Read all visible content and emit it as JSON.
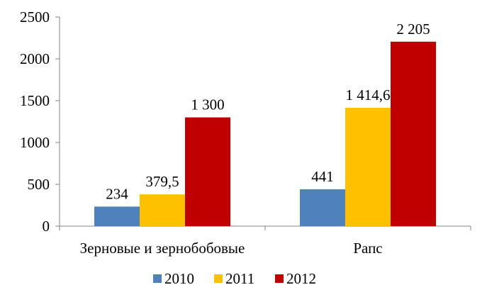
{
  "chart_data": {
    "type": "bar",
    "categories": [
      "Зерновые и зернобобовые",
      "Рапс"
    ],
    "series": [
      {
        "name": "2010",
        "color": "#4F81BD",
        "values": [
          234,
          441
        ],
        "labels": [
          "234",
          "441"
        ]
      },
      {
        "name": "2011",
        "color": "#FFC000",
        "values": [
          379.5,
          1414.6
        ],
        "labels": [
          "379,5",
          "1 414,6"
        ]
      },
      {
        "name": "2012",
        "color": "#C00000",
        "values": [
          1300,
          2205
        ],
        "labels": [
          "1 300",
          "2 205"
        ]
      }
    ],
    "ylim": [
      0,
      2500
    ],
    "yticks": [
      0,
      500,
      1000,
      1500,
      2000,
      2500
    ],
    "ytick_labels": [
      "0",
      "500",
      "1000",
      "1500",
      "2000",
      "2500"
    ],
    "grid": false,
    "legend_position": "bottom"
  }
}
